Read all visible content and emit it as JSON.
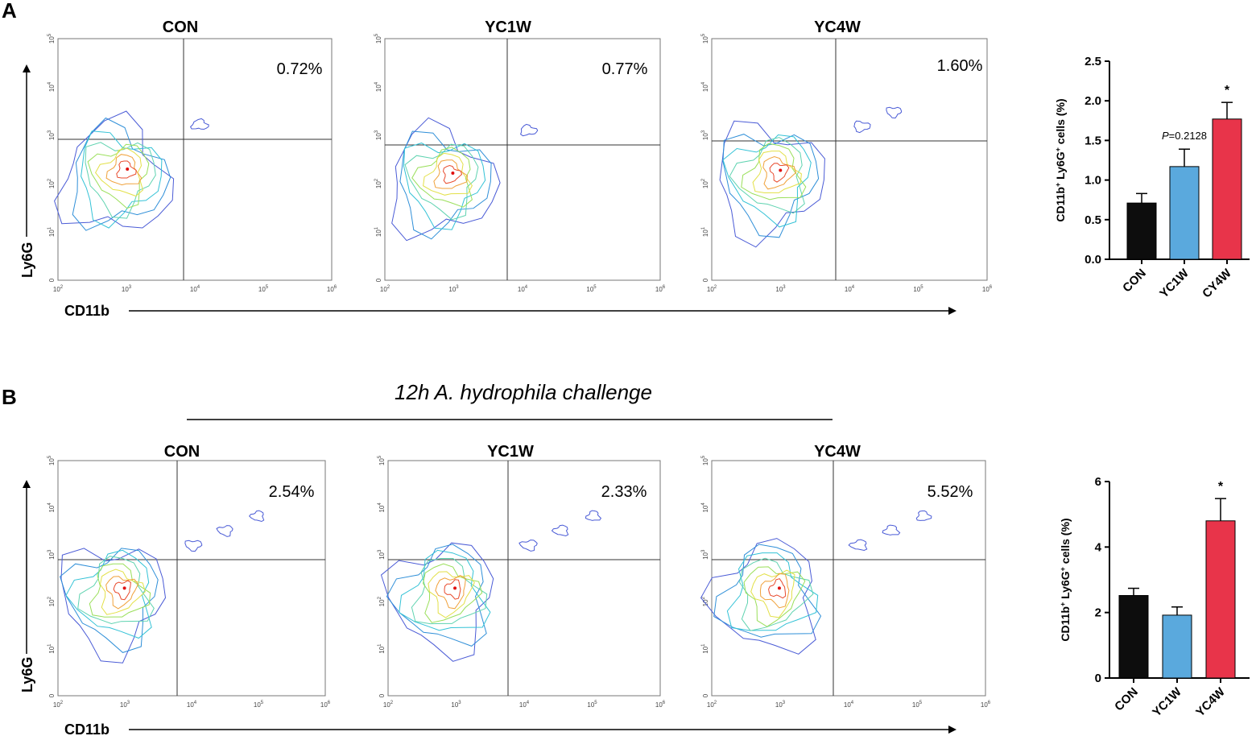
{
  "panels": {
    "A": {
      "letter": "A",
      "flow_plots": [
        {
          "title": "CON",
          "percent": "0.72%"
        },
        {
          "title": "YC1W",
          "percent": "0.77%"
        },
        {
          "title": "YC4W",
          "percent": "1.60%"
        }
      ],
      "y_axis_name": "Ly6G",
      "x_axis_name": "CD11b"
    },
    "B": {
      "letter": "B",
      "challenge_label": "12h A. hydrophila  challenge",
      "flow_plots": [
        {
          "title": "CON",
          "percent": "2.54%"
        },
        {
          "title": "YC1W",
          "percent": "2.33%"
        },
        {
          "title": "YC4W",
          "percent": "5.52%"
        }
      ],
      "y_axis_name": "Ly6G",
      "x_axis_name": "CD11b"
    }
  },
  "flow_ticks": {
    "x": [
      {
        "base": "10",
        "exp": "2"
      },
      {
        "base": "10",
        "exp": "3"
      },
      {
        "base": "10",
        "exp": "4"
      },
      {
        "base": "10",
        "exp": "5"
      },
      {
        "base": "10",
        "exp": "6"
      }
    ],
    "y": [
      {
        "base": "0",
        "exp": ""
      },
      {
        "base": "10",
        "exp": "1"
      },
      {
        "base": "10",
        "exp": "2"
      },
      {
        "base": "10",
        "exp": "3"
      },
      {
        "base": "10",
        "exp": "4"
      },
      {
        "base": "10",
        "exp": "5"
      }
    ]
  },
  "chart_data": [
    {
      "type": "bar",
      "panel": "A",
      "categories": [
        "CON",
        "YC1W",
        "CY4W"
      ],
      "values": [
        0.71,
        1.17,
        1.77
      ],
      "errors": [
        0.12,
        0.22,
        0.21
      ],
      "colors": [
        "#0d0d0d",
        "#5aa9dd",
        "#e8344a"
      ],
      "ylabel_main": "CD11b",
      "ylabel_sup1": "+",
      "ylabel_mid": " Ly6G",
      "ylabel_sup2": "+",
      "ylabel_end": " cells (%)",
      "ylim": [
        0,
        2.5
      ],
      "yticks": [
        "0.0",
        "0.5",
        "1.0",
        "1.5",
        "2.0",
        "2.5"
      ],
      "annotations": [
        {
          "category": "YC1W",
          "label_italic": "P",
          "label_rest": "=0.2128"
        },
        {
          "category": "CY4W",
          "label": "*"
        }
      ]
    },
    {
      "type": "bar",
      "panel": "B",
      "categories": [
        "CON",
        "YC1W",
        "YC4W"
      ],
      "values": [
        2.52,
        1.92,
        4.8
      ],
      "errors": [
        0.22,
        0.25,
        0.68
      ],
      "colors": [
        "#0d0d0d",
        "#5aa9dd",
        "#e8344a"
      ],
      "ylabel_main": "CD11b",
      "ylabel_sup1": "+",
      "ylabel_mid": " Ly6G",
      "ylabel_sup2": "+",
      "ylabel_end": " cells (%)",
      "ylim": [
        0,
        6
      ],
      "yticks": [
        "0",
        "2",
        "4",
        "6"
      ],
      "annotations": [
        {
          "category": "YC4W",
          "label": "*"
        }
      ]
    }
  ]
}
